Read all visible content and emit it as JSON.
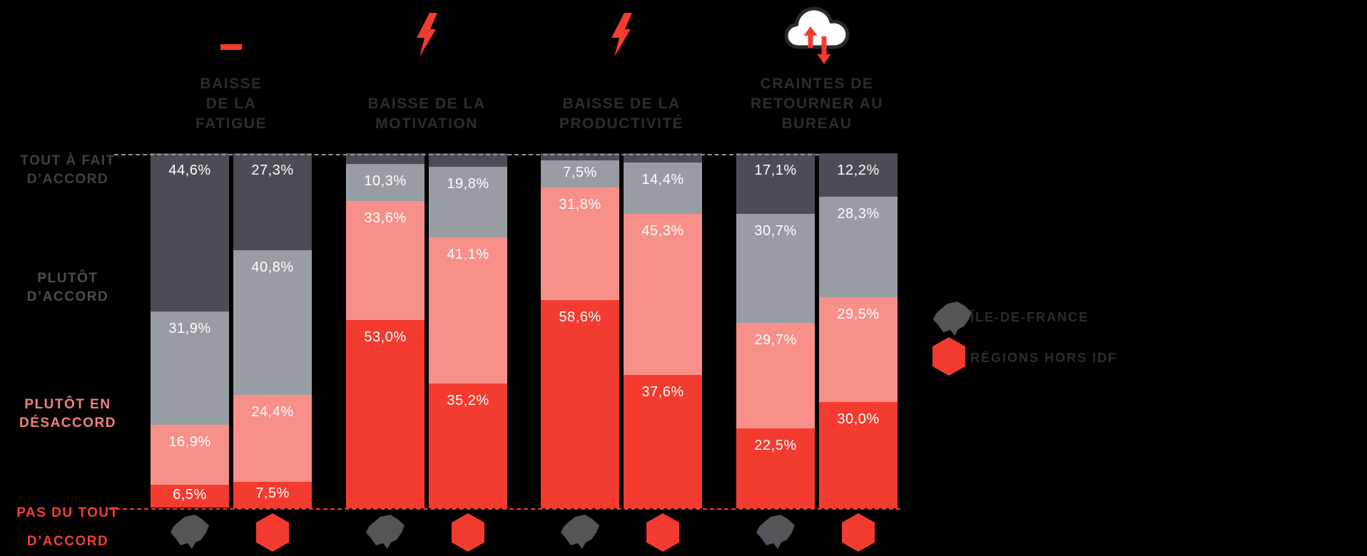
{
  "chart_data": {
    "type": "bar",
    "stacked": true,
    "orientation": "vertical",
    "value_unit": "percent",
    "ylim": [
      0,
      100
    ],
    "grid": "dashed-top-and-baseline-only",
    "colors": {
      "background": "#000000",
      "accent_red": "#f43b30",
      "idf_gray": "#53555b",
      "cloud_outline": "#27292e",
      "cloud_fill": "#ffffff",
      "title_text": "#2b2c30",
      "segments": {
        "tout_a_fait": "#4a4d54",
        "plutot_accord": "#989da4",
        "plutot_en_desaccord": "#f8908a",
        "pas_du_tout": "#f43b30"
      }
    },
    "y_axis": {
      "labels": [
        {
          "lines": [
            "TOUT À FAIT",
            "D’ACCORD"
          ],
          "color": "#3e4046"
        },
        {
          "lines": [
            "PLUTÔT",
            "D’ACCORD"
          ],
          "color": "#4b4d54"
        },
        {
          "lines": [
            "PLUTÔT EN",
            "DÉSACCORD"
          ],
          "color": "#f0827d"
        },
        {
          "lines": [
            "PAS DU TOUT",
            "D’ACCORD"
          ],
          "color": "#f23f35"
        }
      ]
    },
    "legend": {
      "position": "right",
      "items": [
        {
          "label": "ÎLE-DE-FRANCE",
          "icon": "idf-map-icon",
          "color": "#53555b"
        },
        {
          "label": "RÉGIONS HORS IDF",
          "icon": "hexagon-icon",
          "color": "#f43b30"
        }
      ]
    },
    "groups": [
      {
        "icon": "minus-icon",
        "title_lines": [
          "BAISSE",
          "DE LA",
          "FATIGUE"
        ],
        "bars": [
          {
            "region": "ÎLE-DE-FRANCE",
            "icon": "idf-map-icon",
            "segments": [
              {
                "key": "tout_a_fait",
                "value": 44.6,
                "label": "44,6%"
              },
              {
                "key": "plutot_accord",
                "value": 31.9,
                "label": "31,9%"
              },
              {
                "key": "plutot_en_desaccord",
                "value": 16.9,
                "label": "16,9%"
              },
              {
                "key": "pas_du_tout",
                "value": 6.5,
                "label": "6,5%"
              }
            ]
          },
          {
            "region": "RÉGIONS HORS IDF",
            "icon": "hexagon-icon",
            "segments": [
              {
                "key": "tout_a_fait",
                "value": 27.3,
                "label": "27,3%"
              },
              {
                "key": "plutot_accord",
                "value": 40.8,
                "label": "40,8%"
              },
              {
                "key": "plutot_en_desaccord",
                "value": 24.4,
                "label": "24,4%"
              },
              {
                "key": "pas_du_tout",
                "value": 7.5,
                "label": "7,5%"
              }
            ]
          }
        ]
      },
      {
        "icon": "bolt-icon",
        "title_lines": [
          "BAISSE DE LA",
          "MOTIVATION"
        ],
        "bars": [
          {
            "region": "ÎLE-DE-FRANCE",
            "icon": "idf-map-icon",
            "segments": [
              {
                "key": "tout_a_fait",
                "value": 3.1,
                "label": ""
              },
              {
                "key": "plutot_accord",
                "value": 10.3,
                "label": "10,3%"
              },
              {
                "key": "plutot_en_desaccord",
                "value": 33.6,
                "label": "33,6%"
              },
              {
                "key": "pas_du_tout",
                "value": 53.0,
                "label": "53,0%"
              }
            ]
          },
          {
            "region": "RÉGIONS HORS IDF",
            "icon": "hexagon-icon",
            "segments": [
              {
                "key": "tout_a_fait",
                "value": 3.9,
                "label": ""
              },
              {
                "key": "plutot_accord",
                "value": 19.8,
                "label": "19,8%"
              },
              {
                "key": "plutot_en_desaccord",
                "value": 41.1,
                "label": "41,1%"
              },
              {
                "key": "pas_du_tout",
                "value": 35.2,
                "label": "35,2%"
              }
            ]
          }
        ]
      },
      {
        "icon": "bolt-icon",
        "title_lines": [
          "BAISSE DE LA",
          "PRODUCTIVITÉ"
        ],
        "bars": [
          {
            "region": "ÎLE-DE-FRANCE",
            "icon": "idf-map-icon",
            "segments": [
              {
                "key": "tout_a_fait",
                "value": 2.1,
                "label": ""
              },
              {
                "key": "plutot_accord",
                "value": 7.5,
                "label": "7,5%"
              },
              {
                "key": "plutot_en_desaccord",
                "value": 31.8,
                "label": "31,8%"
              },
              {
                "key": "pas_du_tout",
                "value": 58.6,
                "label": "58,6%"
              }
            ]
          },
          {
            "region": "RÉGIONS HORS IDF",
            "icon": "hexagon-icon",
            "segments": [
              {
                "key": "tout_a_fait",
                "value": 2.7,
                "label": ""
              },
              {
                "key": "plutot_accord",
                "value": 14.4,
                "label": "14,4%"
              },
              {
                "key": "plutot_en_desaccord",
                "value": 45.3,
                "label": "45,3%"
              },
              {
                "key": "pas_du_tout",
                "value": 37.6,
                "label": "37,6%"
              }
            ]
          }
        ]
      },
      {
        "icon": "cloud-return-arrows-icon",
        "title_lines": [
          "CRAINTES DE",
          "RETOURNER AU",
          "BUREAU"
        ],
        "bars": [
          {
            "region": "ÎLE-DE-FRANCE",
            "icon": "idf-map-icon",
            "segments": [
              {
                "key": "tout_a_fait",
                "value": 17.1,
                "label": "17,1%"
              },
              {
                "key": "plutot_accord",
                "value": 30.7,
                "label": "30,7%"
              },
              {
                "key": "plutot_en_desaccord",
                "value": 29.7,
                "label": "29,7%"
              },
              {
                "key": "pas_du_tout",
                "value": 22.5,
                "label": "22,5%"
              }
            ]
          },
          {
            "region": "RÉGIONS HORS IDF",
            "icon": "hexagon-icon",
            "segments": [
              {
                "key": "tout_a_fait",
                "value": 12.2,
                "label": "12,2%"
              },
              {
                "key": "plutot_accord",
                "value": 28.3,
                "label": "28,3%"
              },
              {
                "key": "plutot_en_desaccord",
                "value": 29.5,
                "label": "29,5%"
              },
              {
                "key": "pas_du_tout",
                "value": 30.0,
                "label": "30,0%"
              }
            ]
          }
        ]
      }
    ]
  }
}
